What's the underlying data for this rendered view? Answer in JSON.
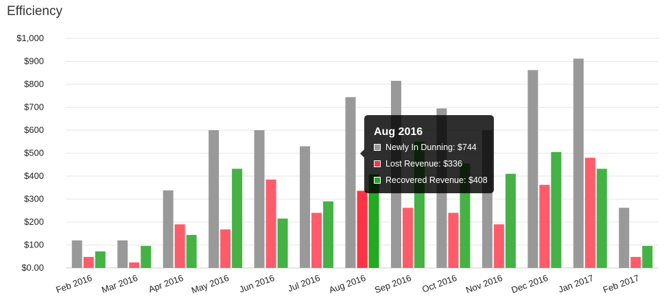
{
  "chart_data": {
    "type": "bar",
    "title": "Efficiency",
    "categories": [
      "Feb 2016",
      "Mar 2016",
      "Apr 2016",
      "May 2016",
      "Jun 2016",
      "Jul 2016",
      "Aug 2016",
      "Sep 2016",
      "Oct 2016",
      "Nov 2016",
      "Dec 2016",
      "Jan 2017",
      "Feb 2017"
    ],
    "series": [
      {
        "name": "Newly In Dunning",
        "color": "#999999",
        "values": [
          120,
          120,
          338,
          600,
          600,
          530,
          744,
          815,
          695,
          600,
          862,
          912,
          262
        ]
      },
      {
        "name": "Lost Revenue",
        "color": "#ff5c6b",
        "values": [
          48,
          24,
          190,
          168,
          385,
          240,
          336,
          262,
          240,
          190,
          362,
          480,
          48
        ]
      },
      {
        "name": "Recovered Revenue",
        "color": "#44b244",
        "values": [
          72,
          96,
          144,
          432,
          215,
          290,
          408,
          550,
          455,
          410,
          505,
          432,
          96
        ]
      }
    ],
    "ylim": [
      0,
      1000
    ],
    "yticks": [
      "$0.00",
      "$100",
      "$200",
      "$300",
      "$400",
      "$500",
      "$600",
      "$700",
      "$800",
      "$900",
      "$1,000"
    ],
    "grid": true,
    "highlight_index": 6,
    "highlight_colors": [
      "#999999",
      "#ff3344",
      "#22aa22"
    ]
  },
  "tooltip": {
    "title": "Aug 2016",
    "rows": [
      {
        "text": "Newly In Dunning: $744",
        "color": "#999999"
      },
      {
        "text": "Lost Revenue: $336",
        "color": "#ff3344"
      },
      {
        "text": "Recovered Revenue: $408",
        "color": "#22aa22"
      }
    ]
  }
}
